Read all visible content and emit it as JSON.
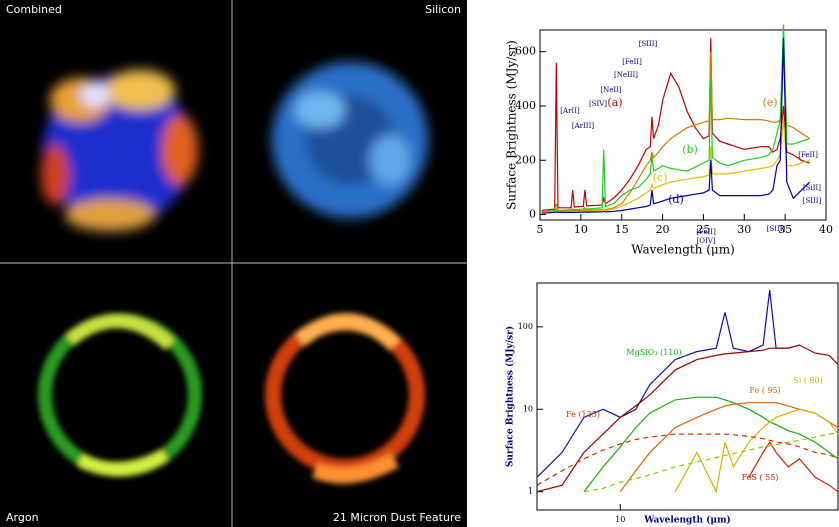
{
  "panels": [
    "Combined",
    "Silicon",
    "Argon",
    "21 Micron Dust Feature"
  ],
  "chart_data": [
    {
      "type": "line",
      "xlabel": "Wavelength (μm)",
      "ylabel": "Surface Brightness (MJy/sr)",
      "x": [
        5.2,
        6.8,
        7.0,
        7.2,
        8.8,
        9.0,
        9.2,
        10.3,
        10.5,
        10.7,
        12.6,
        12.8,
        13.0,
        14,
        15,
        16,
        17,
        18,
        18.5,
        18.7,
        18.9,
        19.5,
        20,
        21,
        22,
        23,
        24,
        25,
        25.7,
        25.9,
        26.1,
        27,
        28,
        30,
        32,
        33,
        33.5,
        34,
        34.4,
        34.8,
        35.2,
        36,
        37,
        38
      ],
      "xlim": [
        5,
        40
      ],
      "ylim": [
        -20,
        680
      ],
      "xticks": [
        5,
        10,
        15,
        20,
        25,
        30,
        35,
        40
      ],
      "yticks": [
        0,
        200,
        400,
        600
      ],
      "annotations": [
        "[ArII]",
        "[ArIII]",
        "[SIV]",
        "[NeII]",
        "[NeIII]",
        "[FeII]",
        "[SIII]",
        "[FeII]",
        "[OIV]",
        "[SIII]",
        "[SIII]",
        "[FeII]",
        "[SiII]"
      ],
      "series": [
        {
          "name": "(a)",
          "color": "#c00000",
          "values": [
            15,
            20,
            560,
            25,
            25,
            90,
            28,
            30,
            90,
            32,
            35,
            60,
            40,
            60,
            90,
            130,
            180,
            240,
            250,
            360,
            280,
            330,
            420,
            520,
            470,
            380,
            320,
            280,
            290,
            650,
            300,
            270,
            260,
            240,
            250,
            250,
            230,
            240,
            280,
            400,
            230,
            220,
            200,
            190
          ]
        },
        {
          "name": "(e)",
          "color": "#e07800",
          "values": [
            10,
            12,
            20,
            14,
            15,
            17,
            15,
            16,
            18,
            16,
            18,
            20,
            18,
            25,
            40,
            80,
            130,
            180,
            200,
            230,
            210,
            230,
            250,
            280,
            300,
            320,
            330,
            340,
            345,
            600,
            350,
            350,
            355,
            350,
            350,
            345,
            340,
            340,
            350,
            600,
            330,
            320,
            300,
            280
          ]
        },
        {
          "name": "(b)",
          "color": "#22cc22",
          "values": [
            10,
            15,
            40,
            15,
            18,
            20,
            18,
            20,
            25,
            20,
            25,
            240,
            30,
            40,
            70,
            90,
            100,
            130,
            150,
            220,
            160,
            170,
            180,
            170,
            165,
            160,
            175,
            190,
            200,
            500,
            210,
            190,
            180,
            200,
            210,
            220,
            240,
            300,
            350,
            700,
            260,
            260,
            270,
            280
          ]
        },
        {
          "name": "(c)",
          "color": "#e0c000",
          "values": [
            8,
            10,
            15,
            10,
            10,
            12,
            10,
            12,
            14,
            12,
            15,
            20,
            15,
            20,
            30,
            45,
            60,
            80,
            90,
            110,
            95,
            105,
            110,
            120,
            125,
            130,
            135,
            140,
            145,
            250,
            150,
            150,
            150,
            160,
            170,
            175,
            180,
            200,
            220,
            350,
            180,
            180,
            190,
            200
          ]
        },
        {
          "name": "(d)",
          "color": "#0000a0",
          "values": [
            5,
            8,
            10,
            8,
            8,
            8,
            8,
            9,
            10,
            9,
            10,
            12,
            10,
            12,
            15,
            20,
            25,
            30,
            35,
            90,
            40,
            45,
            50,
            60,
            65,
            70,
            75,
            80,
            90,
            200,
            90,
            70,
            70,
            70,
            70,
            75,
            90,
            180,
            200,
            650,
            120,
            60,
            90,
            120
          ]
        }
      ]
    },
    {
      "type": "line",
      "xlabel": "Wavelength (μm)",
      "ylabel": "Surface Brightness (MJy/sr)",
      "xscale": "log",
      "yscale": "log",
      "x": [
        6,
        7,
        8,
        9,
        10,
        11,
        12,
        14,
        16,
        18,
        19,
        20,
        22,
        24,
        25,
        26,
        28,
        30,
        33,
        36,
        38
      ],
      "xlim": [
        6,
        38
      ],
      "ylim": [
        0.6,
        340
      ],
      "xticks": [
        10
      ],
      "yticks": [
        1,
        10,
        100
      ],
      "series": [
        {
          "color": "#1010a0",
          "values": [
            1.5,
            3,
            8,
            10,
            8,
            10,
            20,
            40,
            50,
            55,
            150,
            55,
            50,
            60,
            280,
            55,
            55,
            60,
            null,
            null,
            null
          ]
        },
        {
          "color": "#a00000",
          "values": [
            1,
            1.2,
            3,
            5,
            8,
            11,
            15,
            30,
            40,
            45,
            47,
            48,
            50,
            52,
            55,
            55,
            55,
            60,
            48,
            45,
            35
          ]
        },
        {
          "name": "MgSiO₃ (110)",
          "color": "#10b010",
          "values": [
            null,
            null,
            1,
            2,
            3.5,
            6,
            9,
            13,
            14,
            14,
            13,
            12,
            10,
            8,
            7,
            6.5,
            5.5,
            5,
            4,
            3,
            2.5
          ]
        },
        {
          "name": "Fe ( 95)",
          "color": "#e06000",
          "values": [
            null,
            null,
            null,
            null,
            1,
            1.8,
            3,
            6,
            8,
            10,
            11,
            11.5,
            12,
            12,
            12,
            12,
            11,
            10,
            9,
            7,
            6
          ]
        },
        {
          "name": "Si ( 90)",
          "color": "#e0b000",
          "values": [
            null,
            null,
            null,
            null,
            null,
            null,
            null,
            1,
            3,
            1,
            4,
            2,
            4,
            6,
            7,
            8,
            9,
            10,
            9,
            7,
            5
          ]
        },
        {
          "name": "Fe (135)",
          "color": "#d03000",
          "dash": true,
          "values": [
            1.2,
            1.8,
            2.5,
            3.2,
            3.8,
            4.3,
            4.6,
            5,
            5,
            5,
            5,
            4.9,
            4.7,
            4.4,
            4.2,
            4,
            3.8,
            3.5,
            3,
            2.8,
            2.5
          ]
        },
        {
          "name": "FeS ( 55)",
          "color": "#d02000",
          "values": [
            null,
            null,
            null,
            null,
            null,
            null,
            null,
            null,
            null,
            null,
            null,
            null,
            1.5,
            3,
            4,
            3,
            2,
            2.5,
            1.5,
            1.2,
            1
          ]
        },
        {
          "color": "#80d000",
          "dash": true,
          "values": [
            null,
            null,
            1,
            1.1,
            1.3,
            1.45,
            1.6,
            2,
            2.3,
            2.6,
            2.75,
            2.9,
            3.2,
            3.5,
            3.6,
            3.7,
            4,
            4.2,
            4.6,
            5,
            5.2
          ]
        }
      ]
    }
  ]
}
